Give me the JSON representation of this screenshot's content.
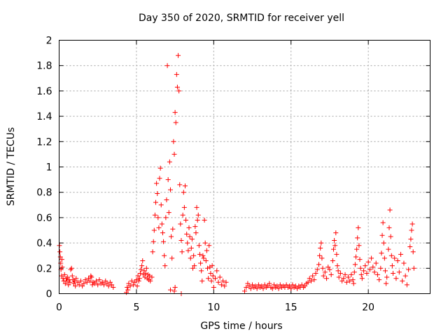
{
  "chart_data": {
    "type": "scatter",
    "title": "Day 350 of 2020, SRMTID for receiver yell",
    "xlabel": "GPS time / hours",
    "ylabel": "SRMTID / TECUs",
    "xlim": [
      0,
      24
    ],
    "ylim": [
      0,
      2
    ],
    "xticks": [
      0,
      5,
      10,
      15,
      20
    ],
    "yticks": [
      0,
      0.2,
      0.4,
      0.6,
      0.8,
      1,
      1.2,
      1.4,
      1.6,
      1.8,
      2
    ],
    "grid": true,
    "marker": "+",
    "color": "#ff0000",
    "series": [
      {
        "name": "SRMTID",
        "points": [
          [
            0.02,
            0.38
          ],
          [
            0.05,
            0.33
          ],
          [
            0.08,
            0.29
          ],
          [
            0.1,
            0.24
          ],
          [
            0.12,
            0.19
          ],
          [
            0.15,
            0.14
          ],
          [
            0.18,
            0.27
          ],
          [
            0.2,
            0.21
          ],
          [
            0.25,
            0.12
          ],
          [
            0.3,
            0.1
          ],
          [
            0.35,
            0.15
          ],
          [
            0.4,
            0.08
          ],
          [
            0.45,
            0.12
          ],
          [
            0.5,
            0.1
          ],
          [
            0.55,
            0.13
          ],
          [
            0.6,
            0.07
          ],
          [
            0.65,
            0.11
          ],
          [
            0.7,
            0.09
          ],
          [
            0.75,
            0.19
          ],
          [
            0.8,
            0.2
          ],
          [
            0.85,
            0.14
          ],
          [
            0.9,
            0.11
          ],
          [
            0.95,
            0.08
          ],
          [
            1.0,
            0.1
          ],
          [
            1.05,
            0.06
          ],
          [
            1.1,
            0.12
          ],
          [
            1.2,
            0.09
          ],
          [
            1.3,
            0.07
          ],
          [
            1.4,
            0.1
          ],
          [
            1.5,
            0.06
          ],
          [
            1.6,
            0.08
          ],
          [
            1.7,
            0.11
          ],
          [
            1.8,
            0.09
          ],
          [
            1.9,
            0.12
          ],
          [
            2.0,
            0.1
          ],
          [
            2.05,
            0.14
          ],
          [
            2.1,
            0.13
          ],
          [
            2.15,
            0.07
          ],
          [
            2.2,
            0.09
          ],
          [
            2.3,
            0.08
          ],
          [
            2.4,
            0.1
          ],
          [
            2.5,
            0.07
          ],
          [
            2.6,
            0.11
          ],
          [
            2.7,
            0.08
          ],
          [
            2.8,
            0.09
          ],
          [
            2.9,
            0.07
          ],
          [
            3.0,
            0.1
          ],
          [
            3.1,
            0.08
          ],
          [
            3.2,
            0.06
          ],
          [
            3.3,
            0.09
          ],
          [
            3.4,
            0.07
          ],
          [
            3.5,
            0.05
          ],
          [
            4.35,
            0.01
          ],
          [
            4.4,
            0.05
          ],
          [
            4.45,
            0.03
          ],
          [
            4.5,
            0.08
          ],
          [
            4.6,
            0.06
          ],
          [
            4.7,
            0.1
          ],
          [
            4.8,
            0.07
          ],
          [
            4.9,
            0.09
          ],
          [
            5.0,
            0.11
          ],
          [
            5.05,
            0.06
          ],
          [
            5.1,
            0.14
          ],
          [
            5.15,
            0.1
          ],
          [
            5.2,
            0.12
          ],
          [
            5.25,
            0.16
          ],
          [
            5.3,
            0.19
          ],
          [
            5.35,
            0.22
          ],
          [
            5.4,
            0.26
          ],
          [
            5.45,
            0.15
          ],
          [
            5.5,
            0.18
          ],
          [
            5.55,
            0.13
          ],
          [
            5.6,
            0.16
          ],
          [
            5.65,
            0.2
          ],
          [
            5.7,
            0.12
          ],
          [
            5.75,
            0.15
          ],
          [
            5.8,
            0.11
          ],
          [
            5.85,
            0.14
          ],
          [
            5.9,
            0.1
          ],
          [
            6.0,
            0.13
          ],
          [
            6.05,
            0.33
          ],
          [
            6.1,
            0.41
          ],
          [
            6.15,
            0.5
          ],
          [
            6.2,
            0.62
          ],
          [
            6.25,
            0.72
          ],
          [
            6.3,
            0.87
          ],
          [
            6.35,
            0.79
          ],
          [
            6.4,
            0.6
          ],
          [
            6.45,
            0.52
          ],
          [
            6.5,
            0.91
          ],
          [
            6.55,
            0.99
          ],
          [
            6.6,
            0.7
          ],
          [
            6.65,
            0.55
          ],
          [
            6.7,
            0.48
          ],
          [
            6.75,
            0.41
          ],
          [
            6.8,
            0.3
          ],
          [
            6.85,
            0.22
          ],
          [
            6.9,
            0.6
          ],
          [
            6.95,
            0.74
          ],
          [
            7.0,
            1.8
          ],
          [
            7.05,
            0.9
          ],
          [
            7.1,
            0.64
          ],
          [
            7.15,
            1.04
          ],
          [
            7.2,
            0.82
          ],
          [
            7.25,
            0.45
          ],
          [
            7.3,
            0.28
          ],
          [
            7.35,
            0.51
          ],
          [
            7.4,
            1.2
          ],
          [
            7.45,
            1.1
          ],
          [
            7.5,
            1.43
          ],
          [
            7.55,
            1.35
          ],
          [
            7.6,
            1.73
          ],
          [
            7.65,
            1.63
          ],
          [
            7.7,
            1.88
          ],
          [
            7.75,
            1.6
          ],
          [
            7.8,
            0.86
          ],
          [
            7.85,
            0.55
          ],
          [
            7.9,
            0.42
          ],
          [
            7.95,
            0.33
          ],
          [
            8.0,
            0.62
          ],
          [
            8.05,
            0.8
          ],
          [
            8.1,
            0.68
          ],
          [
            8.15,
            0.85
          ],
          [
            8.2,
            0.58
          ],
          [
            8.25,
            0.47
          ],
          [
            8.3,
            0.4
          ],
          [
            8.35,
            0.34
          ],
          [
            8.4,
            0.52
          ],
          [
            8.45,
            0.45
          ],
          [
            8.5,
            0.28
          ],
          [
            8.55,
            0.36
          ],
          [
            8.6,
            0.43
          ],
          [
            8.65,
            0.2
          ],
          [
            8.7,
            0.3
          ],
          [
            8.75,
            0.22
          ],
          [
            8.8,
            0.53
          ],
          [
            8.85,
            0.48
          ],
          [
            8.9,
            0.68
          ],
          [
            8.95,
            0.58
          ],
          [
            9.0,
            0.62
          ],
          [
            9.05,
            0.38
          ],
          [
            9.1,
            0.31
          ],
          [
            9.15,
            0.24
          ],
          [
            9.2,
            0.18
          ],
          [
            9.25,
            0.1
          ],
          [
            9.3,
            0.3
          ],
          [
            9.35,
            0.28
          ],
          [
            9.4,
            0.58
          ],
          [
            9.45,
            0.4
          ],
          [
            9.5,
            0.26
          ],
          [
            9.55,
            0.34
          ],
          [
            9.6,
            0.2
          ],
          [
            9.65,
            0.12
          ],
          [
            9.7,
            0.38
          ],
          [
            9.75,
            0.21
          ],
          [
            9.8,
            0.16
          ],
          [
            9.85,
            0.1
          ],
          [
            9.9,
            0.22
          ],
          [
            9.95,
            0.14
          ],
          [
            10.0,
            0.05
          ],
          [
            10.1,
            0.12
          ],
          [
            10.2,
            0.18
          ],
          [
            10.3,
            0.09
          ],
          [
            10.4,
            0.13
          ],
          [
            10.5,
            0.07
          ],
          [
            10.6,
            0.1
          ],
          [
            10.7,
            0.06
          ],
          [
            10.8,
            0.09
          ],
          [
            7.45,
            0.02
          ],
          [
            7.5,
            0.05
          ],
          [
            7.9,
            0.0
          ],
          [
            7.2,
            0.03
          ],
          [
            12.0,
            0.02
          ],
          [
            12.1,
            0.05
          ],
          [
            12.2,
            0.08
          ],
          [
            12.3,
            0.06
          ],
          [
            12.4,
            0.04
          ],
          [
            12.5,
            0.07
          ],
          [
            12.6,
            0.05
          ],
          [
            12.7,
            0.06
          ],
          [
            12.8,
            0.04
          ],
          [
            12.9,
            0.07
          ],
          [
            13.0,
            0.05
          ],
          [
            13.1,
            0.06
          ],
          [
            13.2,
            0.04
          ],
          [
            13.3,
            0.07
          ],
          [
            13.4,
            0.05
          ],
          [
            13.5,
            0.06
          ],
          [
            13.6,
            0.08
          ],
          [
            13.7,
            0.05
          ],
          [
            13.8,
            0.04
          ],
          [
            13.9,
            0.07
          ],
          [
            14.0,
            0.05
          ],
          [
            14.1,
            0.06
          ],
          [
            14.2,
            0.04
          ],
          [
            14.3,
            0.07
          ],
          [
            14.4,
            0.05
          ],
          [
            14.5,
            0.06
          ],
          [
            14.6,
            0.05
          ],
          [
            14.7,
            0.07
          ],
          [
            14.8,
            0.05
          ],
          [
            14.9,
            0.06
          ],
          [
            15.0,
            0.04
          ],
          [
            15.1,
            0.07
          ],
          [
            15.2,
            0.05
          ],
          [
            15.3,
            0.06
          ],
          [
            15.4,
            0.04
          ],
          [
            15.5,
            0.06
          ],
          [
            15.6,
            0.05
          ],
          [
            15.7,
            0.07
          ],
          [
            15.8,
            0.05
          ],
          [
            15.9,
            0.06
          ],
          [
            16.0,
            0.08
          ],
          [
            16.1,
            0.09
          ],
          [
            16.2,
            0.12
          ],
          [
            16.3,
            0.1
          ],
          [
            16.4,
            0.14
          ],
          [
            16.5,
            0.11
          ],
          [
            16.6,
            0.16
          ],
          [
            16.7,
            0.19
          ],
          [
            16.8,
            0.23
          ],
          [
            16.85,
            0.3
          ],
          [
            16.9,
            0.36
          ],
          [
            16.95,
            0.4
          ],
          [
            17.0,
            0.28
          ],
          [
            17.05,
            0.2
          ],
          [
            17.1,
            0.14
          ],
          [
            17.2,
            0.17
          ],
          [
            17.3,
            0.12
          ],
          [
            17.4,
            0.21
          ],
          [
            17.5,
            0.19
          ],
          [
            17.6,
            0.15
          ],
          [
            17.7,
            0.26
          ],
          [
            17.75,
            0.35
          ],
          [
            17.8,
            0.42
          ],
          [
            17.85,
            0.38
          ],
          [
            17.9,
            0.48
          ],
          [
            17.95,
            0.31
          ],
          [
            18.0,
            0.22
          ],
          [
            18.05,
            0.18
          ],
          [
            18.1,
            0.13
          ],
          [
            18.2,
            0.16
          ],
          [
            18.3,
            0.1
          ],
          [
            18.4,
            0.12
          ],
          [
            18.5,
            0.15
          ],
          [
            18.6,
            0.09
          ],
          [
            18.7,
            0.13
          ],
          [
            18.8,
            0.1
          ],
          [
            18.9,
            0.15
          ],
          [
            19.0,
            0.11
          ],
          [
            19.05,
            0.08
          ],
          [
            19.1,
            0.17
          ],
          [
            19.15,
            0.23
          ],
          [
            19.2,
            0.29
          ],
          [
            19.25,
            0.35
          ],
          [
            19.3,
            0.44
          ],
          [
            19.35,
            0.52
          ],
          [
            19.4,
            0.38
          ],
          [
            19.45,
            0.27
          ],
          [
            19.5,
            0.2
          ],
          [
            19.55,
            0.15
          ],
          [
            19.6,
            0.12
          ],
          [
            19.7,
            0.18
          ],
          [
            19.8,
            0.22
          ],
          [
            19.9,
            0.16
          ],
          [
            20.0,
            0.25
          ],
          [
            20.1,
            0.19
          ],
          [
            20.2,
            0.28
          ],
          [
            20.3,
            0.21
          ],
          [
            20.4,
            0.17
          ],
          [
            20.5,
            0.24
          ],
          [
            20.6,
            0.15
          ],
          [
            20.7,
            0.11
          ],
          [
            20.8,
            0.2
          ],
          [
            20.85,
            0.32
          ],
          [
            20.9,
            0.46
          ],
          [
            20.95,
            0.56
          ],
          [
            21.0,
            0.4
          ],
          [
            21.05,
            0.28
          ],
          [
            21.1,
            0.18
          ],
          [
            21.15,
            0.08
          ],
          [
            21.2,
            0.13
          ],
          [
            21.3,
            0.35
          ],
          [
            21.35,
            0.52
          ],
          [
            21.4,
            0.66
          ],
          [
            21.45,
            0.45
          ],
          [
            21.5,
            0.3
          ],
          [
            21.55,
            0.22
          ],
          [
            21.6,
            0.16
          ],
          [
            21.7,
            0.28
          ],
          [
            21.8,
            0.12
          ],
          [
            21.9,
            0.26
          ],
          [
            22.0,
            0.17
          ],
          [
            22.1,
            0.31
          ],
          [
            22.2,
            0.1
          ],
          [
            22.3,
            0.24
          ],
          [
            22.4,
            0.14
          ],
          [
            22.5,
            0.07
          ],
          [
            22.6,
            0.19
          ],
          [
            22.7,
            0.37
          ],
          [
            22.75,
            0.43
          ],
          [
            22.8,
            0.5
          ],
          [
            22.85,
            0.55
          ],
          [
            22.9,
            0.33
          ],
          [
            22.95,
            0.2
          ]
        ]
      }
    ]
  }
}
